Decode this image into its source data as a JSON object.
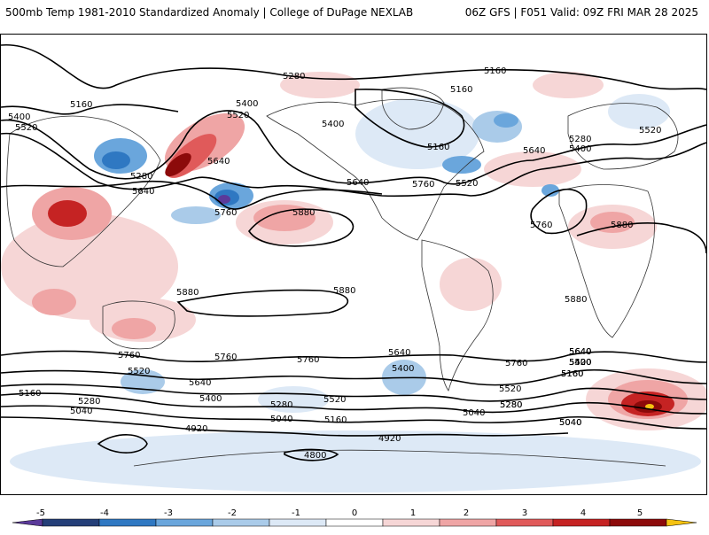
{
  "header": {
    "title_left": "500mb Temp 1981-2010 Standardized Anomaly | College of DuPage NEXLAB",
    "title_right": "06Z GFS | F051 Valid: 09Z FRI MAR 28 2025"
  },
  "contour_labels": [
    "5280",
    "5160",
    "5160",
    "5160",
    "5400",
    "5520",
    "5400",
    "5520",
    "5640",
    "5640",
    "5760",
    "5280",
    "5400",
    "5160",
    "5640",
    "5760",
    "5520",
    "5640",
    "5400",
    "5280",
    "5520",
    "5880",
    "5760",
    "5880",
    "5880",
    "5880",
    "5760",
    "5880",
    "5640",
    "5760",
    "5640",
    "5520",
    "5400",
    "5280",
    "5160",
    "5040",
    "5640",
    "5520",
    "5400",
    "5280",
    "5160",
    "5040",
    "4920",
    "4800",
    "5760",
    "5760",
    "5640",
    "5520",
    "5400",
    "5280",
    "5520",
    "5400",
    "5280",
    "5160",
    "5040",
    "5040",
    "4920",
    "5160",
    "5040",
    "5640",
    "5400"
  ],
  "colorbar": {
    "ticks": [
      "-5",
      "-4",
      "-3",
      "-2",
      "-1",
      "0",
      "1",
      "2",
      "3",
      "4",
      "5"
    ],
    "colors": [
      "#5b3a9a",
      "#243f78",
      "#2f78c2",
      "#6aa6dc",
      "#aacbe9",
      "#dde9f6",
      "#ffffff",
      "#f6d6d6",
      "#efa5a5",
      "#e05a5a",
      "#c52323",
      "#8c0a0a",
      "#f5c211"
    ]
  }
}
